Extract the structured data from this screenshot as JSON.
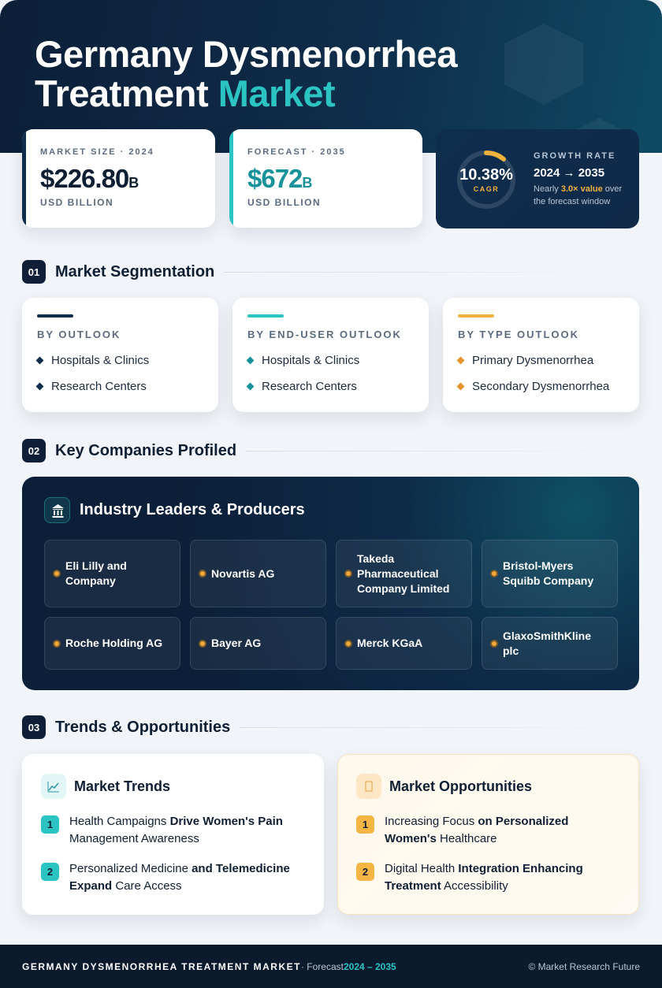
{
  "header": {
    "title_line1": "Germany Dysmenorrhea",
    "title_line2_a": "Treatment ",
    "title_line2_b": "Market"
  },
  "stats": [
    {
      "label": "MARKET SIZE · 2024",
      "value": "$226.80",
      "unit": "B",
      "sub": "USD BILLION"
    },
    {
      "label": "FORECAST · 2035",
      "value": "$672",
      "unit": "B",
      "sub": "USD BILLION"
    }
  ],
  "growth": {
    "cagr": "10.38%",
    "cagr_label": "CAGR",
    "label": "GROWTH RATE",
    "period": "2024 → 2035",
    "note_a": "Nearly ",
    "note_b": "3.0× value",
    "note_c": " over the forecast window"
  },
  "sections": [
    {
      "number": "01",
      "title": "Market Segmentation"
    },
    {
      "number": "02",
      "title": "Key Companies Profiled"
    },
    {
      "number": "03",
      "title": "Trends & Opportunities"
    }
  ],
  "segments": [
    {
      "title": "BY OUTLOOK",
      "items": [
        "Hospitals & Clinics",
        "Research Centers"
      ]
    },
    {
      "title": "BY END-USER OUTLOOK",
      "items": [
        "Hospitals & Clinics",
        "Research Centers"
      ]
    },
    {
      "title": "BY TYPE OUTLOOK",
      "items": [
        "Primary Dysmenorrhea",
        "Secondary Dysmenorrhea"
      ]
    }
  ],
  "companies": {
    "title": "Industry Leaders & Producers",
    "items": [
      "Eli Lilly and Company",
      "Novartis AG",
      "Takeda Pharmaceutical Company Limited",
      "Bristol-Myers Squibb Company",
      "Roche Holding AG",
      "Bayer AG",
      "Merck KGaA",
      "GlaxoSmithKline plc"
    ]
  },
  "trends": [
    {
      "title": "Market Trends",
      "items": [
        {
          "number": "1",
          "parts": [
            {
              "text": "Health Campaigns ",
              "bold": false
            },
            {
              "text": "Drive Women's Pain",
              "bold": true
            },
            {
              "text": " Management Awareness",
              "bold": false
            }
          ]
        },
        {
          "number": "2",
          "parts": [
            {
              "text": "Personalized Medicine ",
              "bold": false
            },
            {
              "text": "and Telemedicine Expand",
              "bold": true
            },
            {
              "text": " Care Access",
              "bold": false
            }
          ]
        }
      ]
    },
    {
      "title": "Market Opportunities",
      "items": [
        {
          "number": "1",
          "parts": [
            {
              "text": "Increasing Focus ",
              "bold": false
            },
            {
              "text": "on Personalized Women's",
              "bold": true
            },
            {
              "text": " Healthcare",
              "bold": false
            }
          ]
        },
        {
          "number": "2",
          "parts": [
            {
              "text": "Digital Health ",
              "bold": false
            },
            {
              "text": "Integration Enhancing Treatment",
              "bold": true
            },
            {
              "text": " Accessibility",
              "bold": false
            }
          ]
        }
      ]
    }
  ],
  "footer": {
    "title": "GERMANY DYSMENORRHEA TREATMENT MARKET",
    "forecast": " · Forecast ",
    "period": "2024 – 2035",
    "credit": "© Market Research Future"
  }
}
